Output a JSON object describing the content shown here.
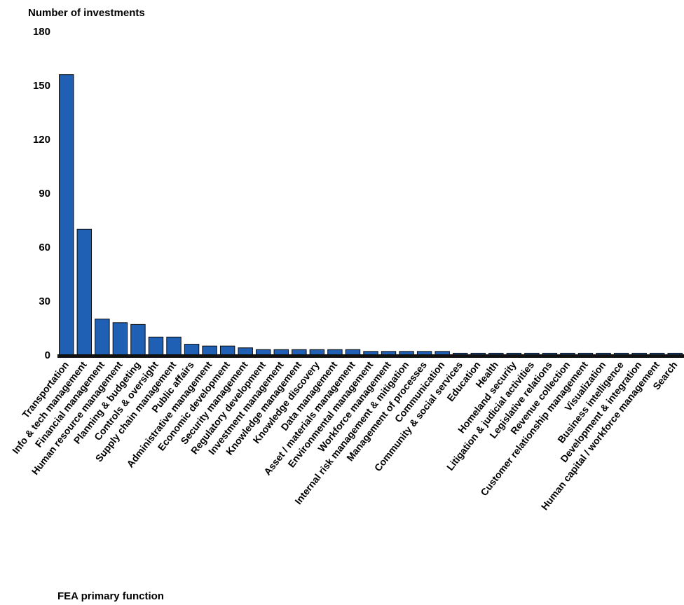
{
  "chart_data": {
    "type": "bar",
    "title": "",
    "ylabel": "Number of investments",
    "xlabel": "FEA primary function",
    "ylim": [
      0,
      180
    ],
    "yticks": [
      0,
      30,
      60,
      90,
      120,
      150,
      180
    ],
    "grid": false,
    "legend": "none",
    "colors": {
      "bar": "#1f5fb4",
      "bar_stroke": "#0a0a0a",
      "axis": "#111111"
    },
    "categories": [
      "Transportation",
      "Info & tech management",
      "Financial management",
      "Human resource management",
      "Planning & budgeting",
      "Controls & oversight",
      "Supply chain management",
      "Public affairs",
      "Administrative management",
      "Economic development",
      "Security management",
      "Regulatory development",
      "Investment management",
      "Knowledge management",
      "Knowledge discovery",
      "Data management",
      "Asset / materials management",
      "Environmental management",
      "Workforce management",
      "Internal risk management & mitigation",
      "Management of processes",
      "Communication",
      "Community & social services",
      "Education",
      "Health",
      "Homeland security",
      "Litigation & judicial activities",
      "Legislative relations",
      "Revenue collection",
      "Customer relationship management",
      "Visualization",
      "Business intelligence",
      "Development & integration",
      "Human capital / workforce management",
      "Search"
    ],
    "values": [
      156,
      70,
      20,
      18,
      17,
      10,
      10,
      6,
      5,
      5,
      4,
      3,
      3,
      3,
      3,
      3,
      3,
      2,
      2,
      2,
      2,
      2,
      1,
      1,
      1,
      1,
      1,
      1,
      1,
      1,
      1,
      1,
      1,
      1,
      1
    ]
  }
}
